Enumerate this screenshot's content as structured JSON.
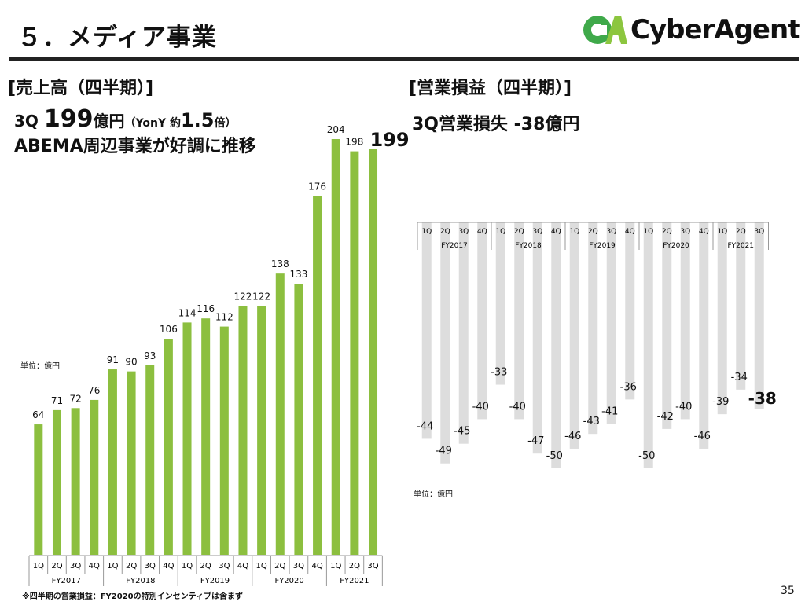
{
  "header": {
    "title": "５．メディア事業",
    "logo_text": "CyberAgent"
  },
  "left": {
    "section": "[売上高（四半期）]",
    "headline_prefix": "3Q ",
    "headline_value": "199",
    "headline_unit": "億円",
    "headline_paren_open": "（YonY 約",
    "headline_ratio": "1.5",
    "headline_paren_close": "倍）",
    "subheadline": "ABEMA周辺事業が好調に推移",
    "unit": "単位：億円"
  },
  "right": {
    "section": "[営業損益（四半期）]",
    "headline": "3Q営業損失 -38億円",
    "unit": "単位：億円"
  },
  "footnote": "※四半期の営業損益：FY2020の特別インセンティブは含まず",
  "page_number": "35",
  "chart_data": [
    {
      "type": "bar",
      "title": "売上高（四半期）",
      "unit": "億円",
      "categories": [
        "1Q",
        "2Q",
        "3Q",
        "4Q",
        "1Q",
        "2Q",
        "3Q",
        "4Q",
        "1Q",
        "2Q",
        "3Q",
        "4Q",
        "1Q",
        "2Q",
        "3Q",
        "4Q",
        "1Q",
        "2Q",
        "3Q"
      ],
      "groups": [
        "FY2017",
        "FY2018",
        "FY2019",
        "FY2020",
        "FY2021"
      ],
      "values": [
        64,
        71,
        72,
        76,
        91,
        90,
        93,
        106,
        114,
        116,
        112,
        122,
        122,
        138,
        133,
        176,
        204,
        198,
        199
      ],
      "color": "#8cbf3f",
      "highlight_last": true
    },
    {
      "type": "bar",
      "title": "営業損益（四半期）",
      "unit": "億円",
      "categories": [
        "1Q",
        "2Q",
        "3Q",
        "4Q",
        "1Q",
        "2Q",
        "3Q",
        "4Q",
        "1Q",
        "2Q",
        "3Q",
        "4Q",
        "1Q",
        "2Q",
        "3Q",
        "4Q",
        "1Q",
        "2Q",
        "3Q"
      ],
      "groups": [
        "FY2017",
        "FY2018",
        "FY2019",
        "FY2020",
        "FY2021"
      ],
      "values": [
        -44,
        -49,
        -45,
        -40,
        -33,
        -40,
        -47,
        -50,
        -46,
        -43,
        -41,
        -36,
        -50,
        -42,
        -40,
        -46,
        -39,
        -34,
        -38
      ],
      "color": "#dddddd",
      "highlight_last": true
    }
  ]
}
